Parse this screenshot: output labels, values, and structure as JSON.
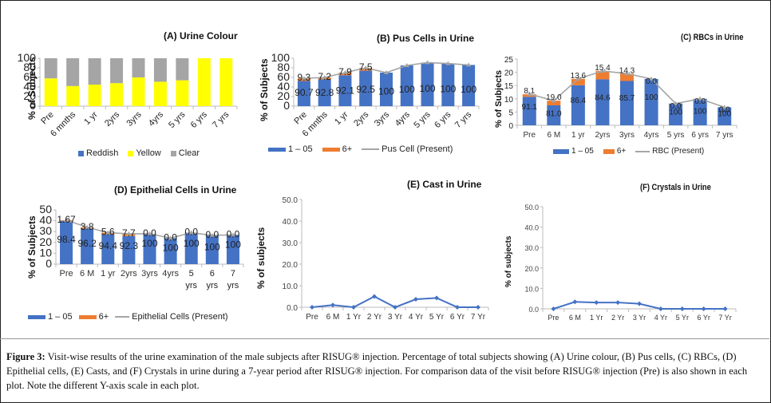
{
  "figure": {
    "caption_label": "Figure 3:",
    "caption_text": "Visit-wise results of the urine examination of the male subjects after RISUG® injection. Percentage of total subjects showing (A) Urine colour, (B) Pus cells, (C) RBCs, (D) Epithelial cells, (E) Casts, and (F) Crystals in urine during a 7-year period after RISUG® injection. For comparison data of the visit before RISUG® injection (Pre) is also shown in each plot. Note the different Y-axis scale in each plot."
  },
  "colors": {
    "blue": "#4472C4",
    "orange": "#ED7D31",
    "gray": "#A5A5A5",
    "yellow": "#FFFF00",
    "line": "#A5A5A5",
    "line_blue": "#4472C4"
  },
  "chart_data": [
    {
      "id": "A",
      "type": "bar",
      "stacked": true,
      "title": "(A) Urine Colour",
      "ylabel": "% of Subjects",
      "xlabel": "",
      "ylim": [
        0,
        100
      ],
      "yticks": [
        0,
        20,
        40,
        60,
        80,
        100
      ],
      "categories": [
        "Pre",
        "6 mnths",
        "1 yr",
        "2yrs",
        "3yrs",
        "4yrs",
        "5 yrs",
        "6 yrs",
        "7 yrs"
      ],
      "series": [
        {
          "name": "Reddish",
          "color": "#4472C4",
          "values": [
            0,
            0,
            0,
            0,
            0,
            0,
            0,
            0,
            0
          ]
        },
        {
          "name": "Yellow",
          "color": "#FFFF00",
          "values": [
            58,
            42,
            45,
            48,
            60,
            51,
            54,
            100,
            100
          ]
        },
        {
          "name": "Clear",
          "color": "#A5A5A5",
          "values": [
            42,
            58,
            55,
            52,
            40,
            49,
            46,
            0,
            0
          ]
        }
      ],
      "legend": "bottom"
    },
    {
      "id": "B",
      "type": "bar",
      "stacked": true,
      "title": "(B) Pus Cells in Urine",
      "ylabel": "% of Subjects",
      "ylim": [
        0,
        100
      ],
      "yticks": [
        0,
        20,
        40,
        60,
        80,
        100
      ],
      "categories": [
        "Pre",
        "6 mnths",
        "1 yr",
        "2yrs",
        "3yrs",
        "4yrs",
        "5 yrs",
        "6 yrs",
        "7 yrs"
      ],
      "present": [
        58,
        60,
        70,
        80,
        70,
        85,
        91,
        89,
        86
      ],
      "series": [
        {
          "name": "1 – 05",
          "color": "#4472C4",
          "labels": [
            "90.7",
            "92.8",
            "92.1",
            "92.5",
            "100",
            "100",
            "100",
            "100",
            "100"
          ],
          "share": [
            90.7,
            92.8,
            92.1,
            92.5,
            100,
            100,
            100,
            100,
            100
          ]
        },
        {
          "name": "6+",
          "color": "#ED7D31",
          "labels": [
            "9.3",
            "7.2",
            "7.9",
            "7.5",
            "",
            "",
            "",
            "",
            ""
          ],
          "share": [
            9.3,
            7.2,
            7.9,
            7.5,
            0,
            0,
            0,
            0,
            0
          ]
        },
        {
          "name": "Pus Cell (Present)",
          "color": "#A5A5A5",
          "kind": "line"
        }
      ],
      "legend": "bottom"
    },
    {
      "id": "C",
      "type": "bar",
      "stacked": true,
      "title": "(C) RBCs in Urine",
      "ylabel": "% of Subjects",
      "ylim": [
        0,
        25
      ],
      "yticks": [
        0,
        5,
        10,
        15,
        20,
        25
      ],
      "categories": [
        "Pre",
        "6 M",
        "1 yr",
        "2yrs",
        "3yrs",
        "4yrs",
        "5 yrs",
        "6 yrs",
        "7 yrs"
      ],
      "present": [
        11.8,
        9.3,
        17.5,
        20.5,
        19.5,
        17.5,
        8.2,
        10,
        6.8
      ],
      "series": [
        {
          "name": "1 – 05",
          "color": "#4472C4",
          "labels": [
            "91.1",
            "81.0",
            "86.4",
            "84.6",
            "85.7",
            "100",
            "100",
            "100",
            "100"
          ],
          "share": [
            91.1,
            81.0,
            86.4,
            84.6,
            85.7,
            100,
            100,
            100,
            100
          ]
        },
        {
          "name": "6+",
          "color": "#ED7D31",
          "labels": [
            "8.1",
            "19.0",
            "13.6",
            "15.4",
            "14.3",
            "0.0",
            "0.0",
            "0.0",
            "0.0"
          ],
          "share": [
            8.1,
            19.0,
            13.6,
            15.4,
            14.3,
            0,
            0,
            0,
            0
          ]
        },
        {
          "name": "RBC (Present)",
          "color": "#A5A5A5",
          "kind": "line"
        }
      ],
      "legend": "bottom"
    },
    {
      "id": "D",
      "type": "bar",
      "stacked": true,
      "title": "(D) Epithelial Cells in Urine",
      "ylabel": "% of Subjects",
      "ylim": [
        0,
        50
      ],
      "yticks": [
        0,
        10,
        20,
        30,
        40,
        50
      ],
      "categories": [
        "Pre",
        "6 M",
        "1 yr",
        "2yrs",
        "3yrs",
        "4yrs",
        "5 yrs",
        "6 yrs",
        "7 yrs"
      ],
      "present": [
        40.5,
        34,
        29,
        28,
        28,
        24,
        29,
        26.5,
        27
      ],
      "series": [
        {
          "name": "1 – 05",
          "color": "#4472C4",
          "labels": [
            "98.4",
            "96.2",
            "94.4",
            "92.3",
            "100",
            "100",
            "100",
            "100",
            "100"
          ],
          "share": [
            98.4,
            96.2,
            94.4,
            92.3,
            100,
            100,
            100,
            100,
            100
          ]
        },
        {
          "name": "6+",
          "color": "#ED7D31",
          "labels": [
            "1.67",
            "3.8",
            "5.6",
            "7.7",
            "0.0",
            "0.0",
            "0.0",
            "0.0",
            "0.0"
          ],
          "share": [
            1.67,
            3.8,
            5.6,
            7.7,
            0,
            0,
            0,
            0,
            0
          ]
        },
        {
          "name": "Epithelial Cells (Present)",
          "color": "#A5A5A5",
          "kind": "line"
        }
      ],
      "legend": "bottom"
    },
    {
      "id": "E",
      "type": "line",
      "title": "(E) Cast in Urine",
      "ylabel": "% of subjects",
      "ylim": [
        0,
        50
      ],
      "yticks": [
        "0.0",
        "10.0",
        "20.0",
        "30.0",
        "40.0",
        "50.0"
      ],
      "categories": [
        "Pre",
        "6 M",
        "1 Yr",
        "2 Yr",
        "3 Yr",
        "4 Yr",
        "5 Yr",
        "6 Yr",
        "7 Yr"
      ],
      "values": [
        0,
        1.0,
        0,
        5.0,
        0,
        3.7,
        4.3,
        0,
        0
      ],
      "color": "#4472C4"
    },
    {
      "id": "F",
      "type": "line",
      "title": "(F) Crystals in Urine",
      "ylabel": "% of subjects",
      "ylim": [
        0,
        50
      ],
      "yticks": [
        "0.0",
        "10.0",
        "20.0",
        "30.0",
        "40.0",
        "50.0"
      ],
      "categories": [
        "Pre",
        "6 M",
        "1 Yr",
        "2 Yr",
        "3 Yr",
        "4 Yr",
        "5 Yr",
        "6 Yr",
        "7 Yr"
      ],
      "values": [
        0,
        3.4,
        3.1,
        3.1,
        2.5,
        0,
        0,
        0,
        0
      ],
      "color": "#4472C4"
    }
  ]
}
